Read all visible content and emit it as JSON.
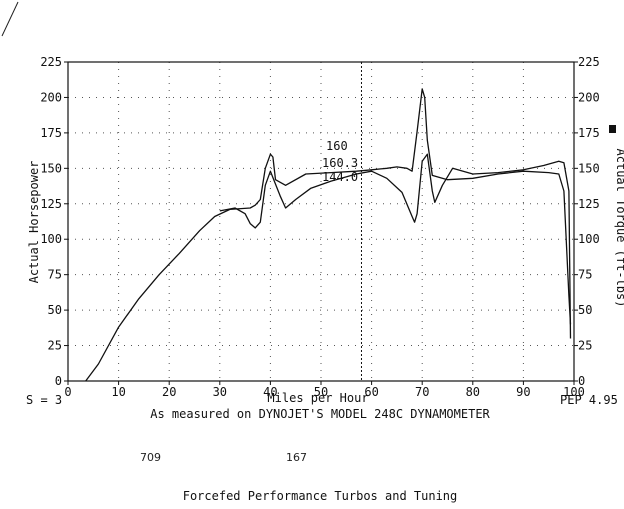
{
  "chart_data": {
    "type": "line",
    "xlabel": "Miles per Hour",
    "ylabel_left": "Actual Horsepower",
    "ylabel_right": "Actual Torque (ft-lbs)",
    "xlim": [
      0,
      100
    ],
    "ylim": [
      0,
      225
    ],
    "x_ticks": [
      0,
      10,
      20,
      30,
      40,
      50,
      60,
      70,
      80,
      90,
      100
    ],
    "y_ticks": [
      0,
      25,
      50,
      75,
      100,
      125,
      150,
      175,
      200,
      225
    ],
    "grid": true,
    "marker_x": 58,
    "series": [
      {
        "role": "horsepower",
        "points": [
          [
            3.5,
            0
          ],
          [
            6,
            12
          ],
          [
            10,
            38
          ],
          [
            14,
            58
          ],
          [
            18,
            75
          ],
          [
            22,
            90
          ],
          [
            26,
            106
          ],
          [
            29,
            116
          ],
          [
            32,
            121
          ],
          [
            36,
            122
          ],
          [
            37,
            124
          ],
          [
            38,
            128
          ],
          [
            39,
            150
          ],
          [
            40,
            160
          ],
          [
            40.5,
            158
          ],
          [
            41,
            142
          ],
          [
            43,
            138
          ],
          [
            47,
            146
          ],
          [
            52,
            147
          ],
          [
            57,
            148
          ],
          [
            60,
            149
          ],
          [
            63,
            150
          ],
          [
            65,
            151
          ],
          [
            67,
            150
          ],
          [
            68,
            148
          ],
          [
            69,
            176
          ],
          [
            70,
            206
          ],
          [
            70.5,
            200
          ],
          [
            71,
            170
          ],
          [
            72,
            145
          ],
          [
            75,
            142
          ],
          [
            80,
            143
          ],
          [
            85,
            146
          ],
          [
            90,
            148
          ],
          [
            95,
            147
          ],
          [
            97,
            146
          ],
          [
            98,
            134
          ],
          [
            99,
            60
          ],
          [
            99.3,
            40
          ]
        ]
      },
      {
        "role": "torque",
        "points": [
          [
            30,
            120
          ],
          [
            33,
            122
          ],
          [
            35,
            118
          ],
          [
            36,
            111
          ],
          [
            37,
            108
          ],
          [
            38,
            112
          ],
          [
            39,
            138
          ],
          [
            40,
            148
          ],
          [
            42,
            130
          ],
          [
            43,
            122
          ],
          [
            45,
            128
          ],
          [
            48,
            136
          ],
          [
            52,
            141
          ],
          [
            57,
            146
          ],
          [
            60,
            148
          ],
          [
            63,
            143
          ],
          [
            66,
            133
          ],
          [
            68,
            116
          ],
          [
            68.5,
            112
          ],
          [
            69,
            118
          ],
          [
            70,
            155
          ],
          [
            71,
            160
          ],
          [
            72,
            134
          ],
          [
            72.5,
            126
          ],
          [
            74,
            138
          ],
          [
            76,
            150
          ],
          [
            80,
            146
          ],
          [
            85,
            147
          ],
          [
            90,
            149
          ],
          [
            94,
            152
          ],
          [
            97,
            155
          ],
          [
            98,
            154
          ],
          [
            99,
            134
          ],
          [
            99.3,
            30
          ]
        ]
      }
    ],
    "annotations": [
      {
        "text": "160",
        "x": 51,
        "y": 163
      },
      {
        "text": "160.3",
        "x": 50.2,
        "y": 151
      },
      {
        "text": "144.0",
        "x": 50.2,
        "y": 141
      }
    ],
    "left_text": "S = 3",
    "right_text": "PEP 4.95",
    "caption": "As measured on DYNOJET'S MODEL 248C DYNAMOMETER",
    "footer": "Forcefed Performance Turbos and Tuning",
    "handwritten": [
      "709",
      "167"
    ]
  }
}
